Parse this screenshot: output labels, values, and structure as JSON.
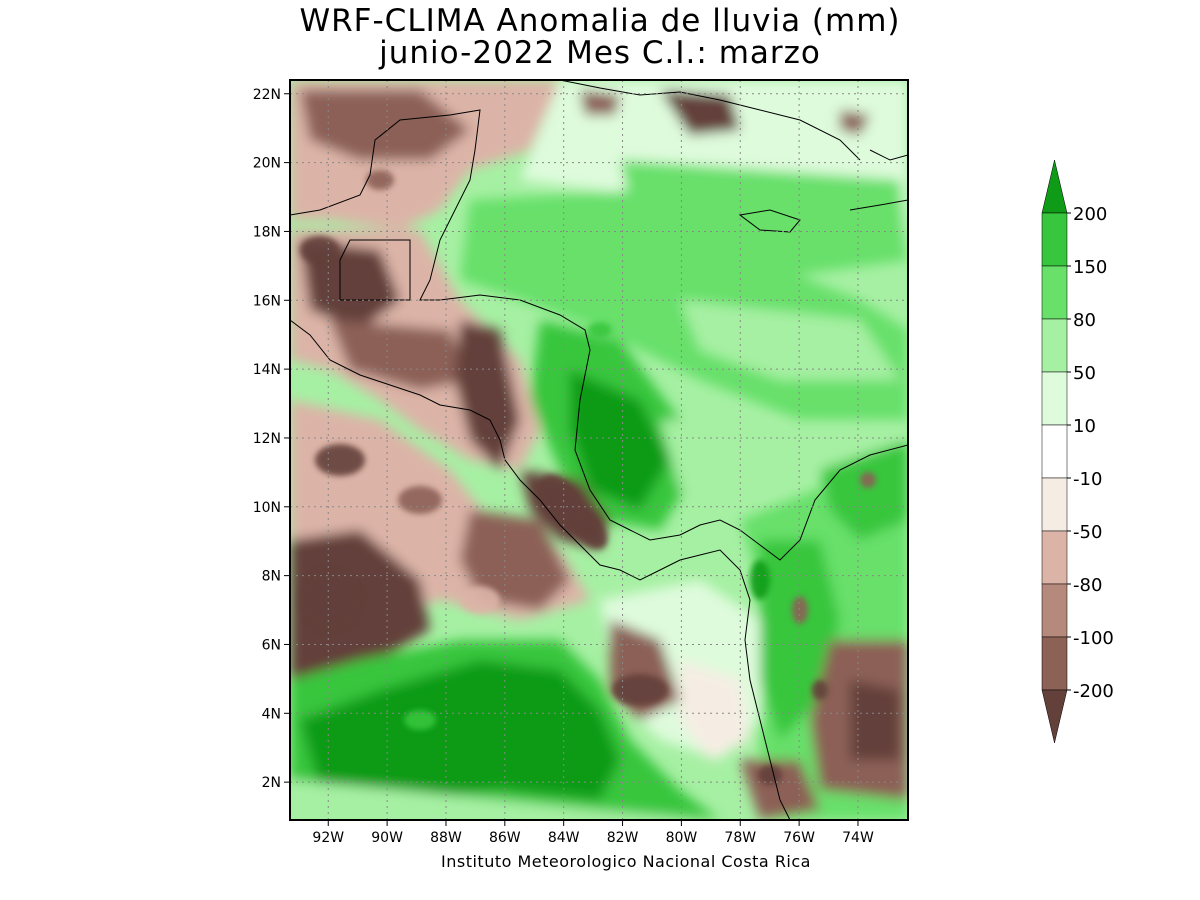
{
  "title": {
    "line1": "WRF-CLIMA Anomalia de lluvia (mm)",
    "line2": "junio-2022 Mes C.I.: marzo"
  },
  "map": {
    "lat_labels": [
      "22N",
      "20N",
      "18N",
      "16N",
      "14N",
      "12N",
      "10N",
      "8N",
      "6N",
      "4N",
      "2N"
    ],
    "lon_labels": [
      "92W",
      "90W",
      "88W",
      "86W",
      "84W",
      "82W",
      "80W",
      "78W",
      "76W",
      "74W"
    ],
    "lat_range": [
      0.9,
      22.4
    ],
    "lon_range": [
      -93.3,
      -72.3
    ],
    "grid": true
  },
  "colorbar": {
    "levels": [
      "200",
      "150",
      "80",
      "50",
      "10",
      "-10",
      "-50",
      "-80",
      "-100",
      "-200"
    ],
    "colors": [
      "#0f9b17",
      "#37c63e",
      "#68e06a",
      "#a6f0a3",
      "#defbdc",
      "#ffffff",
      "#f5ede3",
      "#dcb4a7",
      "#b58a7c",
      "#8c6156",
      "#63413a"
    ]
  },
  "credit": "Instituto Meteorologico Nacional Costa Rica"
}
